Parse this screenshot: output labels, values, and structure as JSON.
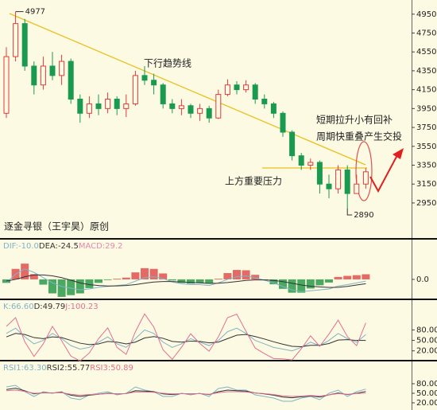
{
  "chart_data": [
    {
      "type": "candlestick",
      "open": [
        3900,
        4500,
        4850,
        4400,
        4200,
        4400,
        4300,
        4450,
        4050,
        3900,
        4000,
        3950,
        4050,
        3950,
        4000,
        4300,
        4250,
        4200,
        4000,
        3950,
        3980,
        3900,
        3950,
        3850,
        4100,
        4200,
        4150,
        4200,
        4050,
        4000,
        3900,
        3700,
        3450,
        3350,
        3380,
        3150,
        3100,
        3300,
        3050,
        3150
      ],
      "high": [
        4600,
        4977,
        4900,
        4450,
        4500,
        4550,
        4520,
        4480,
        4100,
        4080,
        4100,
        4120,
        4080,
        4100,
        4350,
        4400,
        4320,
        4220,
        4050,
        4050,
        4000,
        4000,
        3980,
        4150,
        4260,
        4240,
        4250,
        4220,
        4100,
        4020,
        3920,
        3720,
        3480,
        3420,
        3400,
        3250,
        3350,
        3350,
        3250,
        3320
      ],
      "low": [
        3850,
        4450,
        4350,
        4100,
        4150,
        4250,
        4200,
        4000,
        3800,
        3850,
        3880,
        3900,
        3880,
        3860,
        3980,
        4200,
        4100,
        3950,
        3900,
        3880,
        3850,
        3820,
        3800,
        3840,
        4080,
        4100,
        4120,
        4000,
        3950,
        3850,
        3650,
        3400,
        3300,
        3300,
        3050,
        3000,
        3050,
        2890,
        3050,
        3100
      ],
      "close": [
        4500,
        4850,
        4400,
        4200,
        4400,
        4300,
        4450,
        4050,
        3900,
        4000,
        3950,
        4050,
        3950,
        4000,
        4300,
        4250,
        4200,
        4000,
        3950,
        3980,
        3900,
        3950,
        3850,
        4100,
        4200,
        4150,
        4200,
        4050,
        4000,
        3900,
        3700,
        3450,
        3350,
        3380,
        3150,
        3100,
        3300,
        3050,
        3150,
        3280
      ],
      "up_color": "#e23b3b",
      "down_color": "#1a9a50",
      "ylim": [
        2570,
        5100
      ],
      "yticks": [
        2950,
        3150,
        3350,
        3550,
        3750,
        3950,
        4150,
        4350,
        4550,
        4750,
        4950
      ],
      "high_label": 4977,
      "low_label": 2890,
      "annotations": [
        "下行趋势线",
        "上方重要压力",
        "短期拉升小有回补",
        "周期快重叠产生交投"
      ],
      "credit": "逐金寻银（王宇昊）原创"
    },
    {
      "type": "macd",
      "ylim": [
        -114,
        218
      ],
      "yticks": [
        {
          "value": 0,
          "label": "0.0"
        }
      ],
      "up_color": "#e05050",
      "down_color": "#2a9a4a",
      "series": [
        {
          "name": "DIF:",
          "color": "#7fb3c8",
          "current": -10,
          "current_label": "-10.0",
          "values": [
            -20,
            30,
            60,
            40,
            10,
            -20,
            -40,
            -50,
            -60,
            -55,
            -45,
            -40,
            -35,
            -30,
            -10,
            10,
            15,
            5,
            -15,
            -25,
            -30,
            -30,
            -35,
            -20,
            0,
            15,
            20,
            10,
            -5,
            -20,
            -40,
            -60,
            -70,
            -65,
            -60,
            -55,
            -38,
            -30,
            -20,
            -10
          ]
        },
        {
          "name": "DEA:",
          "color": "#333333",
          "current": -24.5,
          "current_label": "-24.5",
          "values": [
            -10,
            0,
            15,
            25,
            25,
            20,
            10,
            -5,
            -20,
            -30,
            -35,
            -38,
            -37,
            -35,
            -30,
            -22,
            -15,
            -12,
            -12,
            -15,
            -18,
            -20,
            -23,
            -22,
            -18,
            -12,
            -6,
            -3,
            -3,
            -6,
            -13,
            -22,
            -32,
            -39,
            -43,
            -46,
            -45,
            -40,
            -32,
            -24.5
          ]
        },
        {
          "name": "MACD:",
          "color": "#e08ab0",
          "current": 29.2,
          "current_label": "29.2",
          "histogram": true,
          "values": [
            -20,
            60,
            90,
            30,
            -30,
            -80,
            -100,
            -90,
            -80,
            -50,
            -20,
            -4,
            4,
            10,
            40,
            64,
            60,
            34,
            -6,
            -20,
            -24,
            -20,
            -24,
            4,
            36,
            54,
            52,
            26,
            -4,
            -28,
            -54,
            -76,
            -76,
            -52,
            -34,
            -18,
            14,
            20,
            24,
            29.2
          ]
        }
      ]
    },
    {
      "type": "line",
      "ylim": [
        -8,
        163
      ],
      "yticks": [
        {
          "value": 20,
          "label": "20.00"
        },
        {
          "value": 50,
          "label": "50.00"
        },
        {
          "value": 80,
          "label": "80.00"
        }
      ],
      "series": [
        {
          "name": "K:",
          "color": "#7fb3c8",
          "current": 66.6,
          "current_label": "66.60",
          "values": [
            70,
            85,
            60,
            40,
            50,
            70,
            55,
            35,
            25,
            30,
            45,
            60,
            40,
            30,
            55,
            80,
            70,
            45,
            30,
            40,
            55,
            45,
            35,
            50,
            75,
            85,
            70,
            50,
            40,
            30,
            25,
            20,
            30,
            45,
            35,
            50,
            70,
            55,
            45,
            66.6
          ]
        },
        {
          "name": "D:",
          "color": "#333333",
          "current": 49.79,
          "current_label": "49.79",
          "values": [
            60,
            70,
            67,
            58,
            55,
            60,
            58,
            50,
            42,
            38,
            40,
            47,
            45,
            40,
            45,
            57,
            61,
            56,
            47,
            45,
            48,
            47,
            43,
            45,
            55,
            65,
            67,
            61,
            54,
            46,
            39,
            33,
            32,
            36,
            36,
            41,
            51,
            52,
            50,
            49.79
          ]
        },
        {
          "name": "J:",
          "color": "#e07090",
          "current": 100.23,
          "current_label": "100.23",
          "values": [
            90,
            115,
            46,
            4,
            40,
            90,
            49,
            5,
            -9,
            14,
            55,
            86,
            30,
            10,
            75,
            126,
            88,
            23,
            -4,
            30,
            69,
            41,
            19,
            60,
            115,
            125,
            76,
            28,
            12,
            -2,
            -3,
            -6,
            26,
            63,
            33,
            68,
            108,
            61,
            35,
            100.23
          ]
        }
      ]
    },
    {
      "type": "line",
      "ylim": [
        -2.5,
        147.5
      ],
      "yticks": [
        {
          "value": 20,
          "label": "20.00"
        },
        {
          "value": 50,
          "label": "50.00"
        },
        {
          "value": 80,
          "label": "80.00"
        }
      ],
      "series": [
        {
          "name": "RSI1:",
          "color": "#7fb3c8",
          "current": 63.3,
          "current_label": "63.30",
          "values": [
            70,
            75,
            55,
            40,
            55,
            50,
            55,
            35,
            30,
            45,
            50,
            55,
            45,
            50,
            70,
            60,
            55,
            40,
            40,
            50,
            45,
            50,
            40,
            65,
            70,
            60,
            60,
            45,
            40,
            35,
            25,
            25,
            35,
            40,
            30,
            50,
            60,
            40,
            55,
            63.3
          ]
        },
        {
          "name": "RSI2:",
          "color": "#333333",
          "current": 55.77,
          "current_label": "55.77",
          "values": [
            62,
            66,
            58,
            48,
            52,
            51,
            53,
            44,
            40,
            44,
            47,
            50,
            48,
            49,
            58,
            57,
            55,
            48,
            46,
            49,
            48,
            49,
            46,
            55,
            60,
            58,
            57,
            51,
            48,
            44,
            38,
            36,
            39,
            42,
            38,
            45,
            51,
            46,
            50,
            55.77
          ]
        },
        {
          "name": "RSI3:",
          "color": "#e07090",
          "current": 50.89,
          "current_label": "50.89",
          "values": [
            58,
            60,
            56,
            50,
            51,
            51,
            52,
            47,
            44,
            46,
            47,
            49,
            48,
            49,
            54,
            54,
            53,
            50,
            48,
            49,
            48,
            49,
            47,
            52,
            55,
            55,
            54,
            51,
            49,
            46,
            42,
            40,
            41,
            43,
            41,
            45,
            49,
            47,
            49,
            50.89
          ]
        }
      ]
    }
  ]
}
